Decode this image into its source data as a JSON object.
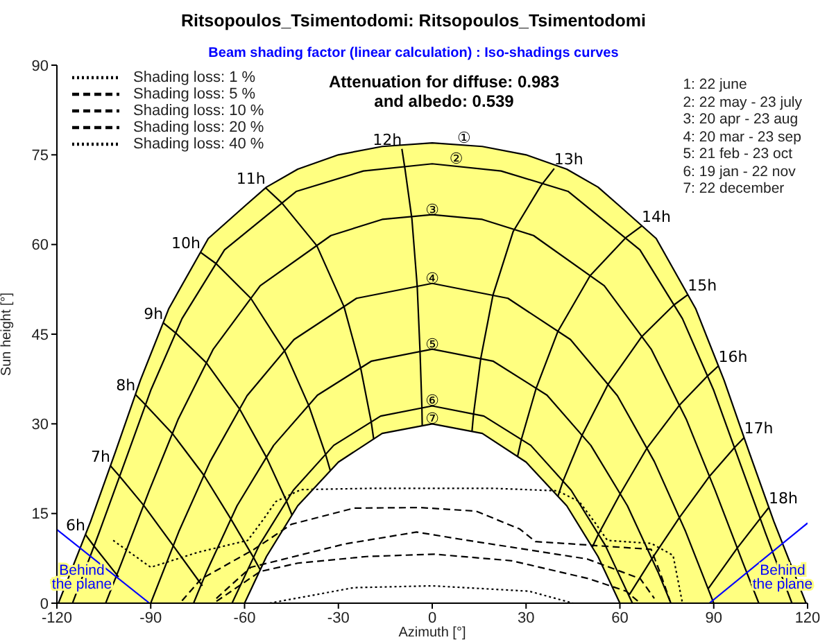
{
  "chart_data": {
    "type": "line",
    "title": "Ritsopoulos_Tsimentodomi: Ritsopoulos_Tsimentodomi",
    "subtitle": "Beam shading factor (linear calculation) : Iso-shadings curves",
    "xlabel": "Azimuth [°]",
    "ylabel": "Sun height [°]",
    "xlim": [
      -120,
      120
    ],
    "xticks": [
      -120,
      -90,
      -60,
      -30,
      0,
      30,
      60,
      90,
      120
    ],
    "ylim": [
      0,
      90
    ],
    "yticks": [
      0,
      15,
      30,
      45,
      60,
      75,
      90
    ],
    "marker": "none",
    "legend": "top left",
    "series": [
      {
        "color": "#000000",
        "x": [
          -119.5,
          -109.2,
          -101.3,
          -93.3,
          -84.2,
          -71.6,
          -60,
          -53,
          -43,
          -30,
          -16,
          0,
          16,
          30,
          43,
          53,
          60,
          71.6,
          84.2,
          93.3,
          101.3,
          109.2,
          119.5
        ],
        "values": [
          0,
          13.7,
          25.3,
          37.3,
          49.3,
          61,
          66.4,
          69.6,
          72.6,
          75,
          76.4,
          77,
          76.4,
          75,
          72.6,
          69.6,
          66.4,
          61,
          49.3,
          37.3,
          25.3,
          13.7,
          0
        ]
      },
      {
        "color": "#000000",
        "x": [
          -115,
          -106.5,
          -98.3,
          -90,
          -80,
          -66.4,
          -43.4,
          -22,
          0,
          22,
          43.4,
          66.4,
          80,
          90,
          98.3,
          106.5,
          115
        ],
        "values": [
          0,
          11.8,
          23.6,
          35.6,
          47.6,
          59.1,
          68.9,
          72.3,
          73.5,
          72.3,
          68.9,
          59.1,
          47.6,
          35.6,
          23.6,
          11.8,
          0
        ]
      },
      {
        "color": "#000000",
        "x": [
          -104.4,
          -99.3,
          -90.5,
          -81.2,
          -70,
          -55,
          -32.4,
          -16,
          0,
          16,
          32.4,
          55,
          70,
          81.2,
          90.5,
          99.3,
          104.4
        ],
        "values": [
          0,
          6.8,
          18.8,
          30.8,
          42.5,
          53.1,
          61.5,
          64.2,
          65,
          64.2,
          61.5,
          53.1,
          42.5,
          30.8,
          18.8,
          6.8,
          0
        ]
      },
      {
        "color": "#000000",
        "x": [
          -90,
          -81,
          -71,
          -59.2,
          -44.2,
          -24.2,
          0,
          24.2,
          44.2,
          59.2,
          71,
          81,
          90
        ],
        "values": [
          0,
          12,
          23.7,
          34.7,
          44.1,
          51,
          53.5,
          51,
          44.1,
          34.7,
          23.7,
          12,
          0
        ]
      },
      {
        "color": "#000000",
        "x": [
          -76.3,
          -72.2,
          -62.4,
          -50.7,
          -36.7,
          -19.4,
          0,
          19.4,
          36.7,
          50.7,
          62.4,
          72.2,
          76.3
        ],
        "values": [
          0,
          5.2,
          16.3,
          26.4,
          34.8,
          40.5,
          42.5,
          40.5,
          34.8,
          26.4,
          16.3,
          5.2,
          0
        ]
      },
      {
        "color": "#000000",
        "x": [
          -64,
          -55.3,
          -44.4,
          -31.5,
          -16.5,
          0,
          16.5,
          31.5,
          44.4,
          55.3,
          64
        ],
        "values": [
          0,
          9.7,
          18.9,
          26.4,
          31.3,
          33,
          31.3,
          26.4,
          18.9,
          9.7,
          0
        ]
      },
      {
        "color": "#000000",
        "x": [
          -60,
          -53,
          -43,
          -30,
          -16,
          0,
          16,
          30,
          43,
          53,
          60
        ],
        "values": [
          0,
          7.8,
          16.3,
          23.6,
          28.4,
          30,
          28.4,
          23.6,
          16.3,
          7.8,
          0
        ]
      },
      {
        "color": "#000000",
        "x": [
          -110.9,
          -108.2,
          -100.3
        ],
        "values": [
          11.5,
          9.6,
          4.4
        ]
      },
      {
        "color": "#000000",
        "x": [
          -102.9,
          -99.9,
          -92.3,
          -82.8,
          -73.5
        ],
        "values": [
          23,
          21.2,
          16.4,
          9.6,
          2.9
        ]
      },
      {
        "color": "#000000",
        "x": [
          -94.9,
          -91.7,
          -83.1,
          -73,
          -64.4,
          -57.2,
          -55
        ],
        "values": [
          34.9,
          33.2,
          28.4,
          21.4,
          14.1,
          7.7,
          5.6
        ]
      },
      {
        "color": "#000000",
        "x": [
          -86,
          -82,
          -72.2,
          -61.6,
          -53,
          -46.6,
          -44.8
        ],
        "values": [
          46.9,
          45.2,
          40.2,
          32.5,
          24.4,
          17.1,
          14.7
        ]
      },
      {
        "color": "#000000",
        "x": [
          -74.1,
          -69.1,
          -58,
          -47.2,
          -39.5,
          -34.1,
          -32.6
        ],
        "values": [
          58.7,
          56.8,
          51,
          42.2,
          33.1,
          24.9,
          22.2
        ]
      },
      {
        "color": "#000000",
        "x": [
          -53.3,
          -48,
          -36.9,
          -28.2,
          -22.9,
          -19.5,
          -18.7
        ],
        "values": [
          69.5,
          66.9,
          59.8,
          49.6,
          39.4,
          30.3,
          27.4
        ]
      },
      {
        "color": "#000000",
        "x": [
          -9.7,
          -8.7,
          -6.5,
          -4.8,
          -3.9,
          -3.3,
          -3.2
        ],
        "values": [
          76,
          72.6,
          64.3,
          53,
          42.1,
          32.7,
          29.7
        ]
      },
      {
        "color": "#000000",
        "x": [
          39,
          34.7,
          25.9,
          19.4,
          15.5,
          13.2,
          12.7
        ],
        "values": [
          72.7,
          69.8,
          62.2,
          51.5,
          40.9,
          31.6,
          28.7
        ]
      },
      {
        "color": "#000000",
        "x": [
          67,
          61.8,
          50.5,
          40.2,
          33.2,
          28.5,
          27.3
        ],
        "values": [
          63.1,
          61.1,
          54.8,
          45.5,
          35.9,
          27.4,
          24.6
        ]
      },
      {
        "color": "#000000",
        "x": [
          81.7,
          77.3,
          67,
          56.2,
          47.9,
          41.8,
          40.2
        ],
        "values": [
          51.6,
          49.9,
          44.6,
          36.6,
          28.1,
          20.4,
          17.9
        ]
      },
      {
        "color": "#000000",
        "x": [
          91.5,
          88,
          79,
          68.6,
          60.1,
          53.1,
          51.2
        ],
        "values": [
          39.7,
          38,
          33.1,
          25.9,
          18.3,
          11.5,
          9.4
        ]
      },
      {
        "color": "#000000",
        "x": [
          99.7,
          96.6,
          88.6,
          79,
          70.2,
          63
        ],
        "values": [
          27.7,
          26,
          21.2,
          14.3,
          7.4,
          1.4
        ]
      },
      {
        "color": "#000000",
        "x": [
          107.6,
          104.9,
          97.5,
          88.2
        ],
        "values": [
          16,
          14.2,
          9.2,
          2.4
        ]
      },
      {
        "name": "Shading loss: 1 %",
        "color": "#000000",
        "line_style": "dotted",
        "x": [
          -102,
          -90,
          -75,
          -59,
          -54,
          -50,
          -42,
          -20,
          0,
          20,
          40,
          47,
          52,
          56,
          70,
          77,
          80
        ],
        "values": [
          10.5,
          6,
          8.5,
          10.5,
          14,
          17,
          19,
          19.2,
          19.2,
          19.2,
          18.8,
          17,
          13.5,
          10.5,
          10,
          8,
          0
        ]
      },
      {
        "name": "Shading loss: 5 %",
        "color": "#000000",
        "line_style": "dashed",
        "x": [
          -80,
          -74,
          -57,
          -45,
          -25,
          -4,
          14,
          28,
          33,
          45,
          70,
          73,
          76
        ],
        "values": [
          0.4,
          4,
          9,
          13.2,
          15.9,
          16,
          15.4,
          12.4,
          10.3,
          9.9,
          9,
          4.9,
          0.4
        ]
      },
      {
        "name": "Shading loss: 10 %",
        "color": "#000000",
        "line_style": "dashed",
        "x": [
          -69,
          -58,
          -28,
          -5,
          9,
          49.5,
          66.5,
          71
        ],
        "values": [
          0.8,
          6,
          9.9,
          11.9,
          10.7,
          7.4,
          4.1,
          0.8
        ]
      },
      {
        "name": "Shading loss: 20 %",
        "color": "#000000",
        "line_style": "dashed",
        "x": [
          -69,
          -55,
          -43,
          -21,
          0.6,
          25.4,
          50,
          62,
          66.5
        ],
        "values": [
          0.3,
          5.3,
          6.7,
          7.8,
          8.2,
          7.1,
          4.1,
          2,
          0
        ]
      },
      {
        "name": "Shading loss: 40 %",
        "color": "#000000",
        "line_style": "dotted",
        "x": [
          -52,
          -25,
          0,
          31,
          45
        ],
        "values": [
          0,
          2.6,
          2.9,
          2,
          0
        ]
      },
      {
        "color": "#0000ff",
        "x": [
          -120,
          -90.4
        ],
        "values": [
          12.3,
          0
        ]
      },
      {
        "color": "#0000ff",
        "x": [
          88.6,
          120
        ],
        "values": [
          0,
          13.4
        ]
      }
    ],
    "annotations": [
      "Attenuation for diffuse: 0.983\nand albedo: 0.539",
      "1: 22 june",
      "2: 22 may - 23 july",
      "3: 20 apr - 23 aug",
      "4: 20 mar - 23 sep",
      "5: 21 feb - 23 oct",
      "6: 19 jan - 22 nov",
      "7: 22 december",
      {
        "text": "①",
        "x": 8,
        "y": 77
      },
      {
        "text": "②",
        "x": 5.5,
        "y": 73.5
      },
      {
        "text": "③",
        "x": 0,
        "y": 65
      },
      {
        "text": "④",
        "x": 0,
        "y": 53.5
      },
      {
        "text": "⑤",
        "x": 0,
        "y": 42.5
      },
      {
        "text": "⑥",
        "x": 0,
        "y": 33
      },
      {
        "text": "⑦",
        "x": 0,
        "y": 30
      },
      {
        "text": "6h",
        "x": -110.9,
        "y": 11.5
      },
      {
        "text": "7h",
        "x": -102.9,
        "y": 23
      },
      {
        "text": "8h",
        "x": -94.9,
        "y": 34.9
      },
      {
        "text": "9h",
        "x": -86,
        "y": 46.9
      },
      {
        "text": "10h",
        "x": -74.1,
        "y": 58.7
      },
      {
        "text": "11h",
        "x": -53.3,
        "y": 69.5
      },
      {
        "text": "12h",
        "x": -9.7,
        "y": 76
      },
      {
        "text": "13h",
        "x": 39,
        "y": 72.7
      },
      {
        "text": "14h",
        "x": 67,
        "y": 63.1
      },
      {
        "text": "15h",
        "x": 81.7,
        "y": 51.6
      },
      {
        "text": "16h",
        "x": 91.5,
        "y": 39.7
      },
      {
        "text": "17h",
        "x": 99.7,
        "y": 27.7
      },
      {
        "text": "18h",
        "x": 107.6,
        "y": 16
      },
      {
        "text": "Behind\nthe plane",
        "x": -112,
        "y": 2
      },
      {
        "text": "Behind\nthe plane",
        "x": 112,
        "y": 2
      }
    ]
  }
}
